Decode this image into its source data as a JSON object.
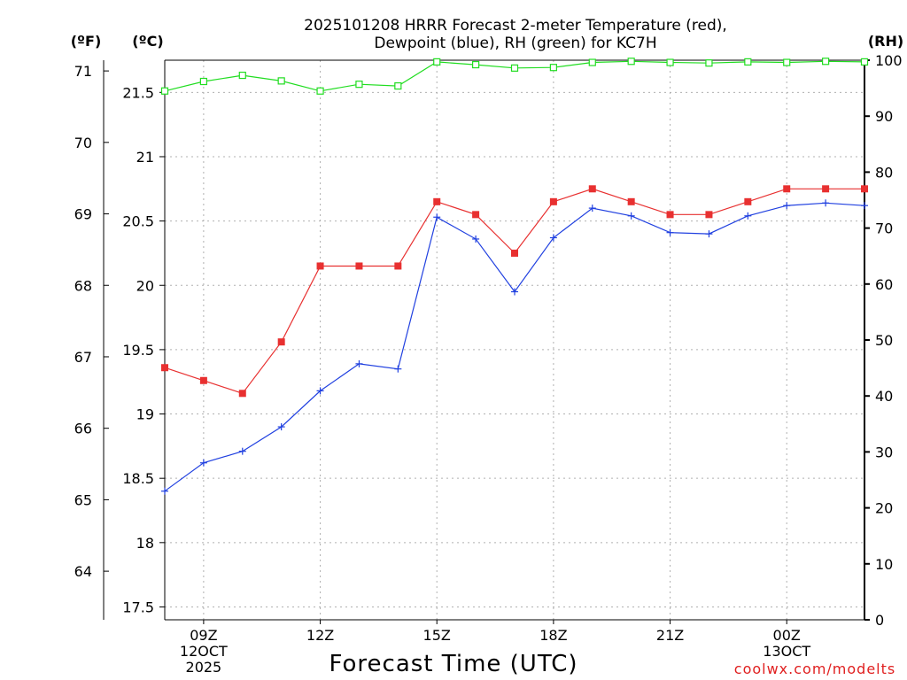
{
  "chart_data": {
    "type": "line",
    "title_line1": "2025101208 HRRR Forecast 2-meter Temperature (red),",
    "title_line2": "Dewpoint (blue), RH (green) for KC7H",
    "xlabel": "Forecast Time (UTC)",
    "credit": "coolwx.com/modelts",
    "units": {
      "fahrenheit": "(ºF)",
      "celsius": "(ºC)",
      "rh": "(RH)"
    },
    "x": [
      8,
      9,
      10,
      11,
      12,
      13,
      14,
      15,
      16,
      17,
      18,
      19,
      20,
      21,
      22,
      23,
      24,
      25,
      26
    ],
    "xlim": [
      8,
      26
    ],
    "x_ticks": [
      {
        "x": 9,
        "lines": [
          "09Z",
          "12OCT",
          "2025"
        ]
      },
      {
        "x": 12,
        "lines": [
          "12Z"
        ]
      },
      {
        "x": 15,
        "lines": [
          "15Z"
        ]
      },
      {
        "x": 18,
        "lines": [
          "18Z"
        ]
      },
      {
        "x": 21,
        "lines": [
          "21Z"
        ]
      },
      {
        "x": 24,
        "lines": [
          "00Z",
          "13OCT"
        ]
      }
    ],
    "celsius_axis": {
      "ylim": [
        17.4,
        21.75
      ],
      "ticks": [
        "17.5",
        "18",
        "18.5",
        "19",
        "19.5",
        "20",
        "20.5",
        "21",
        "21.5"
      ]
    },
    "fahrenheit_axis": {
      "ticks": [
        "64",
        "65",
        "66",
        "67",
        "68",
        "69",
        "70",
        "71"
      ]
    },
    "rh_axis": {
      "ylim": [
        0,
        100
      ],
      "ticks": [
        "0",
        "10",
        "20",
        "30",
        "40",
        "50",
        "60",
        "70",
        "80",
        "90",
        "100"
      ]
    },
    "colors": {
      "temperature": "#e83030",
      "dewpoint": "#2040e0",
      "rh": "#20dd20",
      "grid": "#b0b0b0"
    },
    "series": [
      {
        "name": "Temperature",
        "axis": "celsius",
        "values": [
          19.36,
          19.26,
          19.16,
          19.56,
          20.15,
          20.15,
          20.15,
          20.65,
          20.55,
          20.25,
          20.65,
          20.75,
          20.65,
          20.55,
          20.55,
          20.65,
          20.75,
          20.75,
          20.75
        ]
      },
      {
        "name": "Dewpoint",
        "axis": "celsius",
        "values": [
          18.4,
          18.62,
          18.71,
          18.9,
          19.18,
          19.39,
          19.35,
          20.53,
          20.36,
          19.95,
          20.37,
          20.6,
          20.54,
          20.41,
          20.4,
          20.54,
          20.62,
          20.64,
          20.62
        ]
      },
      {
        "name": "RH",
        "axis": "rh",
        "values": [
          94.5,
          96.2,
          97.3,
          96.3,
          94.5,
          95.7,
          95.4,
          99.7,
          99.2,
          98.6,
          98.7,
          99.6,
          99.8,
          99.6,
          99.5,
          99.7,
          99.6,
          99.8,
          99.7
        ]
      }
    ]
  }
}
